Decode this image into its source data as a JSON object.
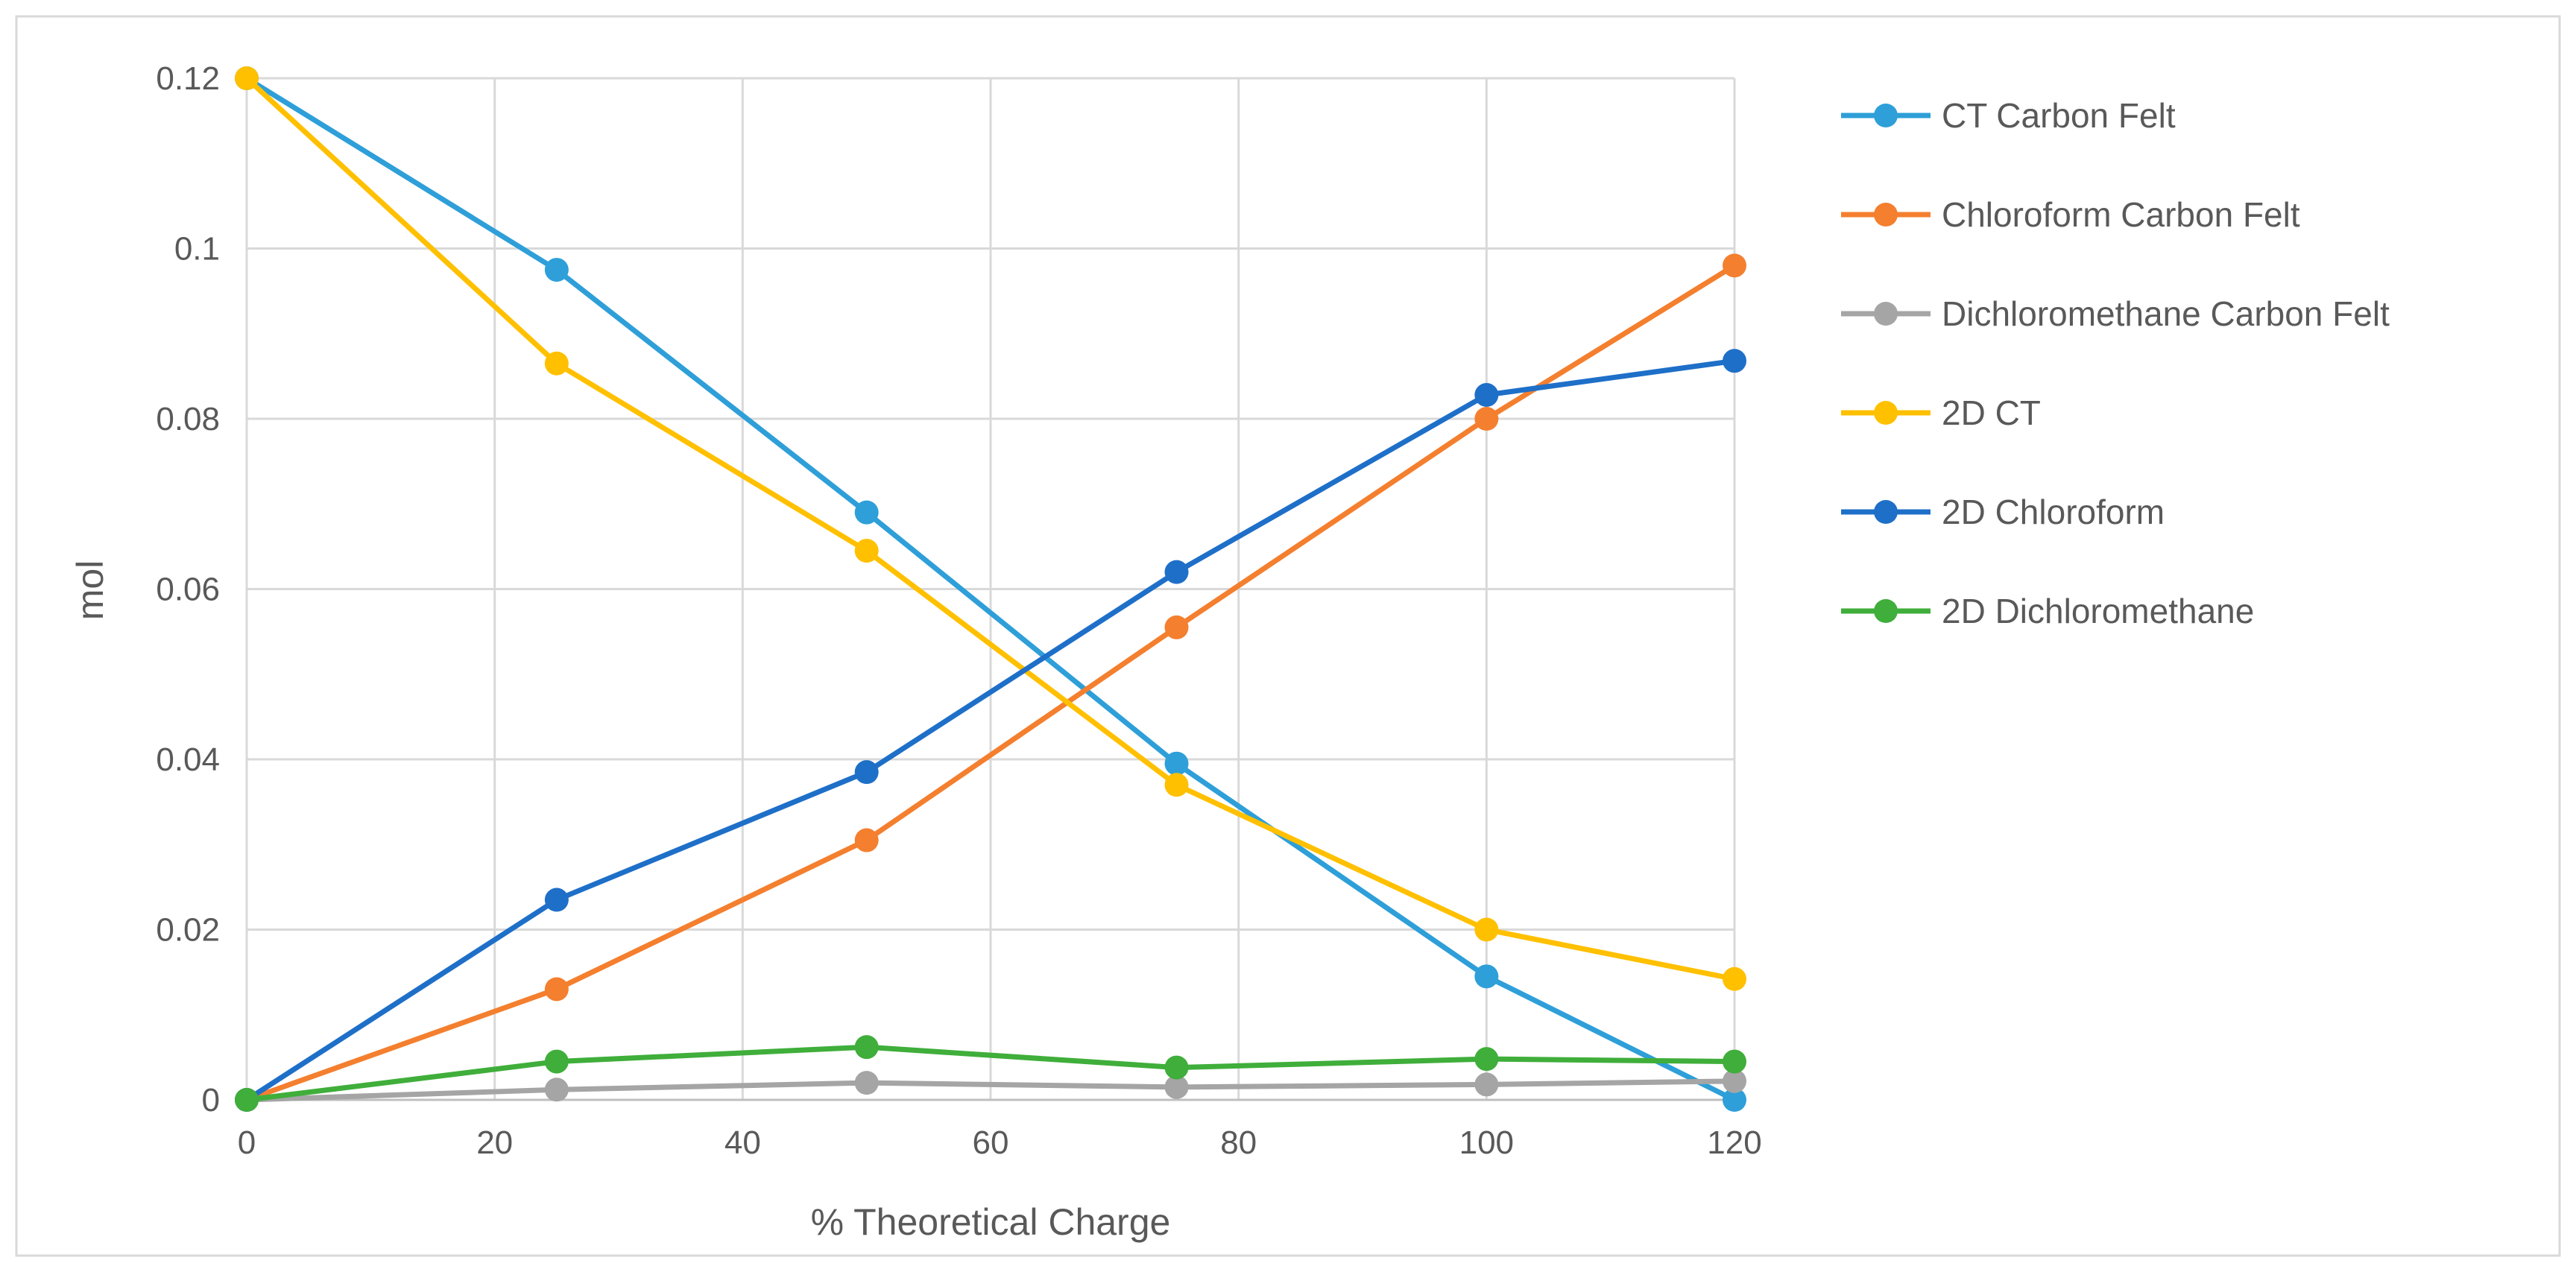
{
  "chart_data": {
    "type": "line",
    "title": "",
    "xlabel": "% Theoretical Charge",
    "ylabel": "mol",
    "xlim": [
      0,
      120
    ],
    "ylim": [
      0,
      0.12
    ],
    "grid": true,
    "legend_position": "right",
    "x": [
      0,
      25,
      50,
      75,
      100,
      120
    ],
    "x_ticks": [
      0,
      20,
      40,
      60,
      80,
      100,
      120
    ],
    "x_tick_labels": [
      "0",
      "20",
      "40",
      "60",
      "80",
      "100",
      "120"
    ],
    "y_ticks": [
      0,
      0.02,
      0.04,
      0.06,
      0.08,
      0.1,
      0.12
    ],
    "y_tick_labels": [
      "0",
      "0.02",
      "0.04",
      "0.06",
      "0.08",
      "0.1",
      "0.12"
    ],
    "series": [
      {
        "name": "CT Carbon Felt",
        "color": "#2E9FD8",
        "values": [
          0.12,
          0.0975,
          0.069,
          0.0395,
          0.0145,
          0.0
        ]
      },
      {
        "name": "Chloroform Carbon Felt",
        "color": "#F47F2E",
        "values": [
          0.0,
          0.013,
          0.0305,
          0.0555,
          0.08,
          0.098
        ]
      },
      {
        "name": "Dichloromethane Carbon Felt",
        "color": "#A5A5A5",
        "values": [
          0.0,
          0.0012,
          0.002,
          0.0015,
          0.0018,
          0.0022
        ]
      },
      {
        "name": "2D CT",
        "color": "#FFC000",
        "values": [
          0.12,
          0.0865,
          0.0645,
          0.037,
          0.02,
          0.0142
        ]
      },
      {
        "name": "2D Chloroform",
        "color": "#1E6FC8",
        "values": [
          0.0,
          0.0235,
          0.0385,
          0.062,
          0.0828,
          0.0868
        ]
      },
      {
        "name": "2D Dichloromethane",
        "color": "#3FAE3A",
        "values": [
          0.0,
          0.0045,
          0.0062,
          0.0038,
          0.0048,
          0.0045
        ]
      }
    ]
  }
}
